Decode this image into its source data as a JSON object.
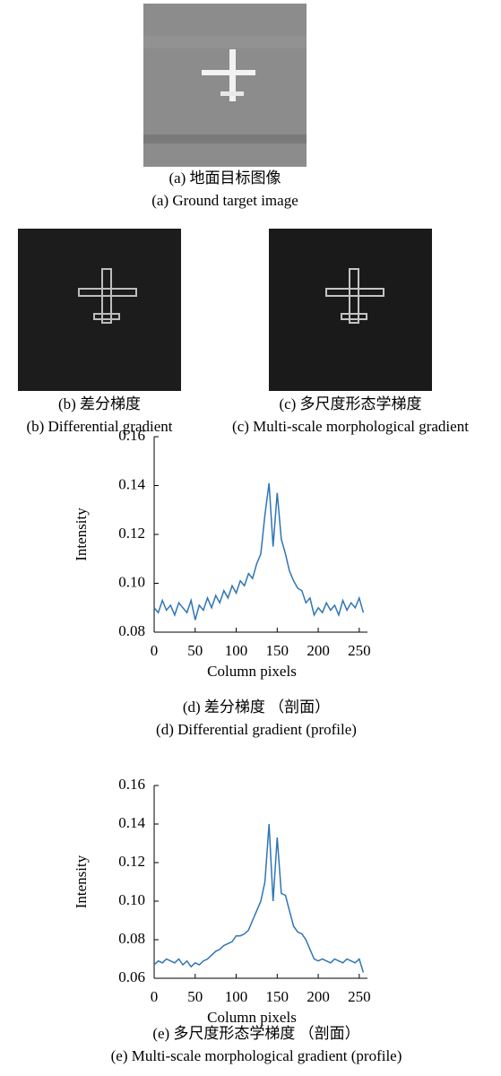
{
  "panels": [
    {
      "caption_zh": "(a) 地面目标图像",
      "caption_en": "(a) Ground target image"
    },
    {
      "caption_zh": "(b) 差分梯度",
      "caption_en": "(b) Differential gradient"
    },
    {
      "caption_zh": "(c) 多尺度形态学梯度",
      "caption_en": "(c) Multi-scale morphological gradient"
    }
  ],
  "chart_data": [
    {
      "type": "line",
      "caption_zh": "(d) 差分梯度 （剖面）",
      "caption_en": "(d) Differential gradient (profile)",
      "x_label": "Column pixels",
      "y_label": "Intensity",
      "color": "#2e75b6",
      "xlim": [
        0,
        260
      ],
      "xticks": [
        0,
        50,
        100,
        150,
        200,
        250
      ],
      "ylim": [
        0.08,
        0.16
      ],
      "yticks": [
        0.08,
        {
          "value": 0.1,
          "label": "0.10"
        },
        0.12,
        0.14,
        0.16
      ],
      "x": [
        0,
        5,
        10,
        15,
        20,
        25,
        30,
        35,
        40,
        45,
        50,
        55,
        60,
        65,
        70,
        75,
        80,
        85,
        90,
        95,
        100,
        105,
        110,
        115,
        120,
        125,
        130,
        135,
        140,
        145,
        150,
        155,
        160,
        165,
        170,
        175,
        180,
        185,
        190,
        195,
        200,
        205,
        210,
        215,
        220,
        225,
        230,
        235,
        240,
        245,
        250,
        255
      ],
      "values": [
        0.09,
        0.088,
        0.093,
        0.089,
        0.091,
        0.087,
        0.092,
        0.09,
        0.088,
        0.093,
        0.085,
        0.091,
        0.089,
        0.094,
        0.09,
        0.095,
        0.092,
        0.097,
        0.094,
        0.099,
        0.096,
        0.101,
        0.099,
        0.104,
        0.102,
        0.108,
        0.112,
        0.128,
        0.141,
        0.115,
        0.137,
        0.118,
        0.112,
        0.105,
        0.101,
        0.098,
        0.097,
        0.092,
        0.094,
        0.087,
        0.09,
        0.088,
        0.092,
        0.089,
        0.091,
        0.087,
        0.093,
        0.089,
        0.092,
        0.09,
        0.094,
        0.088
      ]
    },
    {
      "type": "line",
      "caption_zh": "(e) 多尺度形态学梯度 （剖面）",
      "caption_en": "(e) Multi-scale morphological gradient (profile)",
      "x_label": "Column pixels",
      "y_label": "Intensity",
      "color": "#2e75b6",
      "xlim": [
        0,
        260
      ],
      "xticks": [
        0,
        50,
        100,
        150,
        200,
        250
      ],
      "ylim": [
        0.06,
        0.16
      ],
      "yticks": [
        0.06,
        0.08,
        {
          "value": 0.1,
          "label": "0.10"
        },
        0.12,
        0.14,
        0.16
      ],
      "x": [
        0,
        5,
        10,
        15,
        20,
        25,
        30,
        35,
        40,
        45,
        50,
        55,
        60,
        65,
        70,
        75,
        80,
        85,
        90,
        95,
        100,
        105,
        110,
        115,
        120,
        125,
        130,
        135,
        140,
        145,
        150,
        155,
        160,
        165,
        170,
        175,
        180,
        185,
        190,
        195,
        200,
        205,
        210,
        215,
        220,
        225,
        230,
        235,
        240,
        245,
        250,
        255
      ],
      "values": [
        0.067,
        0.069,
        0.068,
        0.07,
        0.069,
        0.068,
        0.07,
        0.067,
        0.069,
        0.066,
        0.068,
        0.067,
        0.069,
        0.07,
        0.072,
        0.074,
        0.075,
        0.077,
        0.078,
        0.079,
        0.082,
        0.082,
        0.083,
        0.085,
        0.09,
        0.095,
        0.1,
        0.11,
        0.14,
        0.1,
        0.133,
        0.104,
        0.103,
        0.095,
        0.087,
        0.084,
        0.083,
        0.08,
        0.075,
        0.07,
        0.069,
        0.07,
        0.069,
        0.068,
        0.07,
        0.069,
        0.068,
        0.07,
        0.069,
        0.068,
        0.07,
        0.063
      ]
    }
  ]
}
